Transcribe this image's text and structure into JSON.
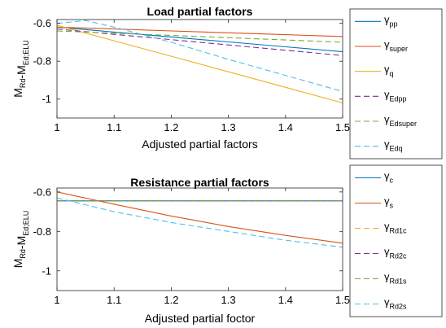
{
  "chart_data": [
    {
      "type": "line",
      "title": "Load partial factors",
      "xlabel": "Adjusted partial factors",
      "ylabel": "M_Rd-M_Ed;ELU",
      "xlim": [
        1,
        1.5
      ],
      "ylim": [
        -1.1,
        -0.58
      ],
      "xticks": [
        "1",
        "1.1",
        "1.2",
        "1.3",
        "1.4",
        "1.5"
      ],
      "yticks": [
        "-0.6",
        "-0.8",
        "-1"
      ],
      "grid": false,
      "legend": "outside-right",
      "series": [
        {
          "name": "γpp",
          "symbol": "γ",
          "subscript": "pp",
          "color": "#0072bd",
          "dash": "solid",
          "x": [
            1,
            1.1,
            1.2,
            1.3,
            1.4,
            1.5
          ],
          "y": [
            -0.62,
            -0.646,
            -0.672,
            -0.698,
            -0.724,
            -0.75
          ]
        },
        {
          "name": "γsuper",
          "symbol": "γ",
          "subscript": "super",
          "color": "#d95319",
          "dash": "solid",
          "x": [
            1,
            1.1,
            1.2,
            1.3,
            1.4,
            1.5
          ],
          "y": [
            -0.62,
            -0.63,
            -0.64,
            -0.65,
            -0.66,
            -0.67
          ]
        },
        {
          "name": "γq",
          "symbol": "γ",
          "subscript": "q",
          "color": "#edb120",
          "dash": "solid",
          "x": [
            1,
            1.1,
            1.2,
            1.3,
            1.4,
            1.5
          ],
          "y": [
            -0.61,
            -0.692,
            -0.774,
            -0.856,
            -0.938,
            -1.02
          ]
        },
        {
          "name": "γEdpp",
          "symbol": "γ",
          "subscript": "Edpp",
          "color": "#7e2f8e",
          "dash": "dashed",
          "x": [
            1,
            1.1,
            1.2,
            1.3,
            1.4,
            1.5
          ],
          "y": [
            -0.63,
            -0.658,
            -0.686,
            -0.714,
            -0.742,
            -0.77
          ]
        },
        {
          "name": "γEdsuper",
          "symbol": "γ",
          "subscript": "Edsuper",
          "color": "#77ac30",
          "dash": "dashed",
          "x": [
            1,
            1.1,
            1.2,
            1.3,
            1.4,
            1.5
          ],
          "y": [
            -0.64,
            -0.652,
            -0.664,
            -0.676,
            -0.688,
            -0.7
          ]
        },
        {
          "name": "γEdq",
          "symbol": "γ",
          "subscript": "Edq",
          "color": "#4dbeee",
          "dash": "dashed",
          "x": [
            1,
            1.05,
            1.1,
            1.2,
            1.3,
            1.4,
            1.5
          ],
          "y": [
            -0.6,
            -0.585,
            -0.62,
            -0.7,
            -0.79,
            -0.875,
            -0.96
          ]
        }
      ]
    },
    {
      "type": "line",
      "title": "Resistance partial factors",
      "xlabel": "Adjusted partial foctor",
      "ylabel": "M_Rd-M_Ed;ELU",
      "xlim": [
        1,
        1.5
      ],
      "ylim": [
        -1.1,
        -0.58
      ],
      "xticks": [
        "1",
        "1.1",
        "1.2",
        "1.3",
        "1.4",
        "1.5"
      ],
      "yticks": [
        "-0.6",
        "-0.8",
        "-1"
      ],
      "grid": false,
      "legend": "outside-right",
      "series": [
        {
          "name": "γc",
          "symbol": "γ",
          "subscript": "c",
          "color": "#0072bd",
          "dash": "solid",
          "x": [
            1,
            1.5
          ],
          "y": [
            -0.645,
            -0.645
          ]
        },
        {
          "name": "γs",
          "symbol": "γ",
          "subscript": "s",
          "color": "#d95319",
          "dash": "solid",
          "x": [
            1,
            1.1,
            1.2,
            1.3,
            1.4,
            1.5
          ],
          "y": [
            -0.6,
            -0.662,
            -0.722,
            -0.775,
            -0.82,
            -0.86
          ]
        },
        {
          "name": "γRd1c",
          "symbol": "γ",
          "subscript": "Rd1c",
          "color": "#edb120",
          "dash": "dashed",
          "x": [
            1,
            1.5
          ],
          "y": [
            -0.645,
            -0.645
          ]
        },
        {
          "name": "γRd2c",
          "symbol": "γ",
          "subscript": "Rd2c",
          "color": "#7e2f8e",
          "dash": "dashed",
          "x": [
            1,
            1.5
          ],
          "y": [
            -0.645,
            -0.645
          ]
        },
        {
          "name": "γRd1s",
          "symbol": "γ",
          "subscript": "Rd1s",
          "color": "#77ac30",
          "dash": "dashed",
          "x": [
            1,
            1.5
          ],
          "y": [
            -0.645,
            -0.645
          ]
        },
        {
          "name": "γRd2s",
          "symbol": "γ",
          "subscript": "Rd2s",
          "color": "#4dbeee",
          "dash": "dashed",
          "x": [
            1,
            1.1,
            1.2,
            1.3,
            1.4,
            1.5
          ],
          "y": [
            -0.63,
            -0.7,
            -0.755,
            -0.8,
            -0.845,
            -0.88
          ]
        }
      ]
    }
  ]
}
